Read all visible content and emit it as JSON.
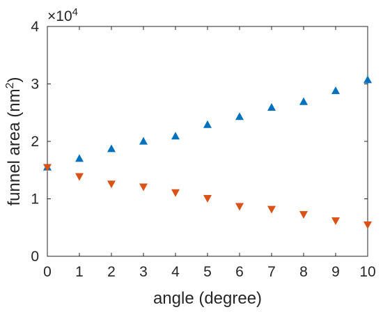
{
  "chart_data": {
    "type": "scatter",
    "xlabel": "angle (degree)",
    "ylabel_text": "funnel area (nm",
    "ylabel_sup": "2",
    "ylabel_close": ")",
    "xlim": [
      0,
      10
    ],
    "ylim": [
      0,
      40000
    ],
    "x_ticks": [
      0,
      1,
      2,
      3,
      4,
      5,
      6,
      7,
      8,
      9,
      10
    ],
    "y_ticks": [
      0,
      10000,
      20000,
      30000,
      40000
    ],
    "x_tick_labels": [
      "0",
      "1",
      "2",
      "3",
      "4",
      "5",
      "6",
      "7",
      "8",
      "9",
      "10"
    ],
    "y_tick_labels": [
      "0",
      "1",
      "2",
      "3",
      "4"
    ],
    "y_exponent_base": "×10",
    "y_exponent_power": "4",
    "grid": false,
    "legend": "none",
    "series": [
      {
        "marker": "triangle-up",
        "color": "#0072BD",
        "x": [
          0,
          1,
          2,
          3,
          4,
          5,
          6,
          7,
          8,
          9,
          10
        ],
        "y": [
          15600,
          17100,
          18800,
          20100,
          21000,
          23000,
          24400,
          26000,
          27000,
          28900,
          30800
        ]
      },
      {
        "marker": "triangle-down",
        "color": "#D95319",
        "x": [
          0,
          1,
          2,
          3,
          4,
          5,
          6,
          7,
          8,
          9,
          10
        ],
        "y": [
          15400,
          13800,
          12500,
          12000,
          11000,
          10000,
          8600,
          8100,
          7200,
          6100,
          5400
        ]
      }
    ]
  }
}
